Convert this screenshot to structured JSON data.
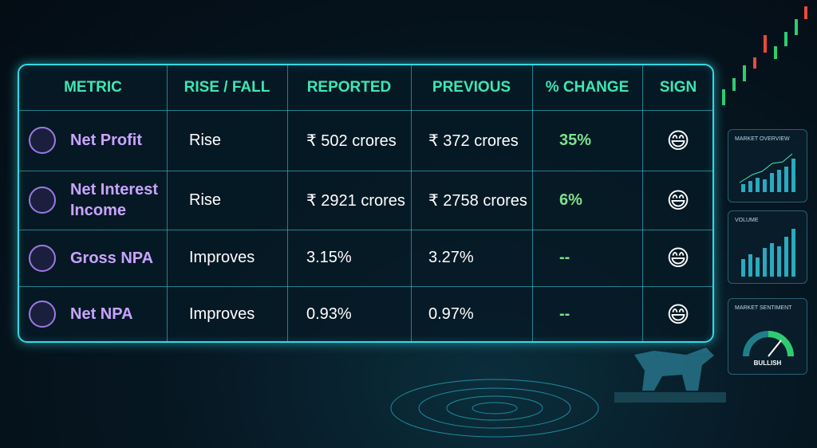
{
  "table": {
    "headers": [
      "METRIC",
      "RISE / FALL",
      "REPORTED",
      "PREVIOUS",
      "% CHANGE",
      "SIGN"
    ],
    "rows": [
      [
        "Net Profit",
        "Rise",
        "₹ 502 crores",
        "₹ 372 crores",
        "35%",
        "😄"
      ],
      [
        "Net Interest Income",
        "Rise",
        "₹ 2921 crores",
        "₹ 2758 crores",
        "6%",
        "😄"
      ],
      [
        "Gross NPA",
        "Improves",
        "3.15%",
        "3.27%",
        "--",
        "😄"
      ],
      [
        "Net NPA",
        "Improves",
        "0.93%",
        "0.97%",
        "--",
        "😄"
      ]
    ]
  },
  "panels": {
    "market_overview": "MARKET OVERVIEW",
    "volume": "VOLUME",
    "market_sentiment": "MARKET SENTIMENT",
    "sentiment_value": "BULLISH"
  }
}
